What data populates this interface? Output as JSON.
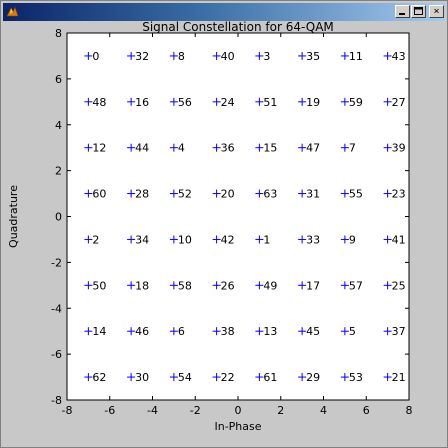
{
  "window": {
    "close_label": "×"
  },
  "chart_data": {
    "type": "scatter",
    "title": "Signal Constellation for 64-QAM",
    "xlabel": "In-Phase",
    "ylabel": "Quadrature",
    "xlim": [
      -8,
      8
    ],
    "ylim": [
      -8,
      8
    ],
    "xticks": [
      -8,
      -6,
      -4,
      -2,
      0,
      2,
      4,
      6,
      8
    ],
    "yticks": [
      -8,
      -6,
      -4,
      -2,
      0,
      2,
      4,
      6,
      8
    ],
    "grid": false,
    "marker": "+",
    "color": "#0000ff",
    "points": [
      {
        "x": -7,
        "y": 7,
        "label": "0"
      },
      {
        "x": -5,
        "y": 7,
        "label": "32"
      },
      {
        "x": -3,
        "y": 7,
        "label": "8"
      },
      {
        "x": -1,
        "y": 7,
        "label": "40"
      },
      {
        "x": 1,
        "y": 7,
        "label": "3"
      },
      {
        "x": 3,
        "y": 7,
        "label": "35"
      },
      {
        "x": 5,
        "y": 7,
        "label": "11"
      },
      {
        "x": 7,
        "y": 7,
        "label": "43"
      },
      {
        "x": -7,
        "y": 5,
        "label": "48"
      },
      {
        "x": -5,
        "y": 5,
        "label": "16"
      },
      {
        "x": -3,
        "y": 5,
        "label": "56"
      },
      {
        "x": -1,
        "y": 5,
        "label": "24"
      },
      {
        "x": 1,
        "y": 5,
        "label": "51"
      },
      {
        "x": 3,
        "y": 5,
        "label": "19"
      },
      {
        "x": 5,
        "y": 5,
        "label": "59"
      },
      {
        "x": 7,
        "y": 5,
        "label": "27"
      },
      {
        "x": -7,
        "y": 3,
        "label": "12"
      },
      {
        "x": -5,
        "y": 3,
        "label": "44"
      },
      {
        "x": -3,
        "y": 3,
        "label": "4"
      },
      {
        "x": -1,
        "y": 3,
        "label": "36"
      },
      {
        "x": 1,
        "y": 3,
        "label": "15"
      },
      {
        "x": 3,
        "y": 3,
        "label": "47"
      },
      {
        "x": 5,
        "y": 3,
        "label": "7"
      },
      {
        "x": 7,
        "y": 3,
        "label": "39"
      },
      {
        "x": -7,
        "y": 1,
        "label": "60"
      },
      {
        "x": -5,
        "y": 1,
        "label": "28"
      },
      {
        "x": -3,
        "y": 1,
        "label": "52"
      },
      {
        "x": -1,
        "y": 1,
        "label": "20"
      },
      {
        "x": 1,
        "y": 1,
        "label": "63"
      },
      {
        "x": 3,
        "y": 1,
        "label": "31"
      },
      {
        "x": 5,
        "y": 1,
        "label": "55"
      },
      {
        "x": 7,
        "y": 1,
        "label": "23"
      },
      {
        "x": -7,
        "y": -1,
        "label": "2"
      },
      {
        "x": -5,
        "y": -1,
        "label": "34"
      },
      {
        "x": -3,
        "y": -1,
        "label": "10"
      },
      {
        "x": -1,
        "y": -1,
        "label": "42"
      },
      {
        "x": 1,
        "y": -1,
        "label": "1"
      },
      {
        "x": 3,
        "y": -1,
        "label": "33"
      },
      {
        "x": 5,
        "y": -1,
        "label": "9"
      },
      {
        "x": 7,
        "y": -1,
        "label": "41"
      },
      {
        "x": -7,
        "y": -3,
        "label": "50"
      },
      {
        "x": -5,
        "y": -3,
        "label": "18"
      },
      {
        "x": -3,
        "y": -3,
        "label": "58"
      },
      {
        "x": -1,
        "y": -3,
        "label": "26"
      },
      {
        "x": 1,
        "y": -3,
        "label": "49"
      },
      {
        "x": 3,
        "y": -3,
        "label": "17"
      },
      {
        "x": 5,
        "y": -3,
        "label": "57"
      },
      {
        "x": 7,
        "y": -3,
        "label": "25"
      },
      {
        "x": -7,
        "y": -5,
        "label": "14"
      },
      {
        "x": -5,
        "y": -5,
        "label": "46"
      },
      {
        "x": -3,
        "y": -5,
        "label": "6"
      },
      {
        "x": -1,
        "y": -5,
        "label": "38"
      },
      {
        "x": 1,
        "y": -5,
        "label": "13"
      },
      {
        "x": 3,
        "y": -5,
        "label": "45"
      },
      {
        "x": 5,
        "y": -5,
        "label": "5"
      },
      {
        "x": 7,
        "y": -5,
        "label": "37"
      },
      {
        "x": -7,
        "y": -7,
        "label": "62"
      },
      {
        "x": -5,
        "y": -7,
        "label": "30"
      },
      {
        "x": -3,
        "y": -7,
        "label": "54"
      },
      {
        "x": -1,
        "y": -7,
        "label": "22"
      },
      {
        "x": 1,
        "y": -7,
        "label": "61"
      },
      {
        "x": 3,
        "y": -7,
        "label": "29"
      },
      {
        "x": 5,
        "y": -7,
        "label": "53"
      },
      {
        "x": 7,
        "y": -7,
        "label": "21"
      }
    ]
  }
}
